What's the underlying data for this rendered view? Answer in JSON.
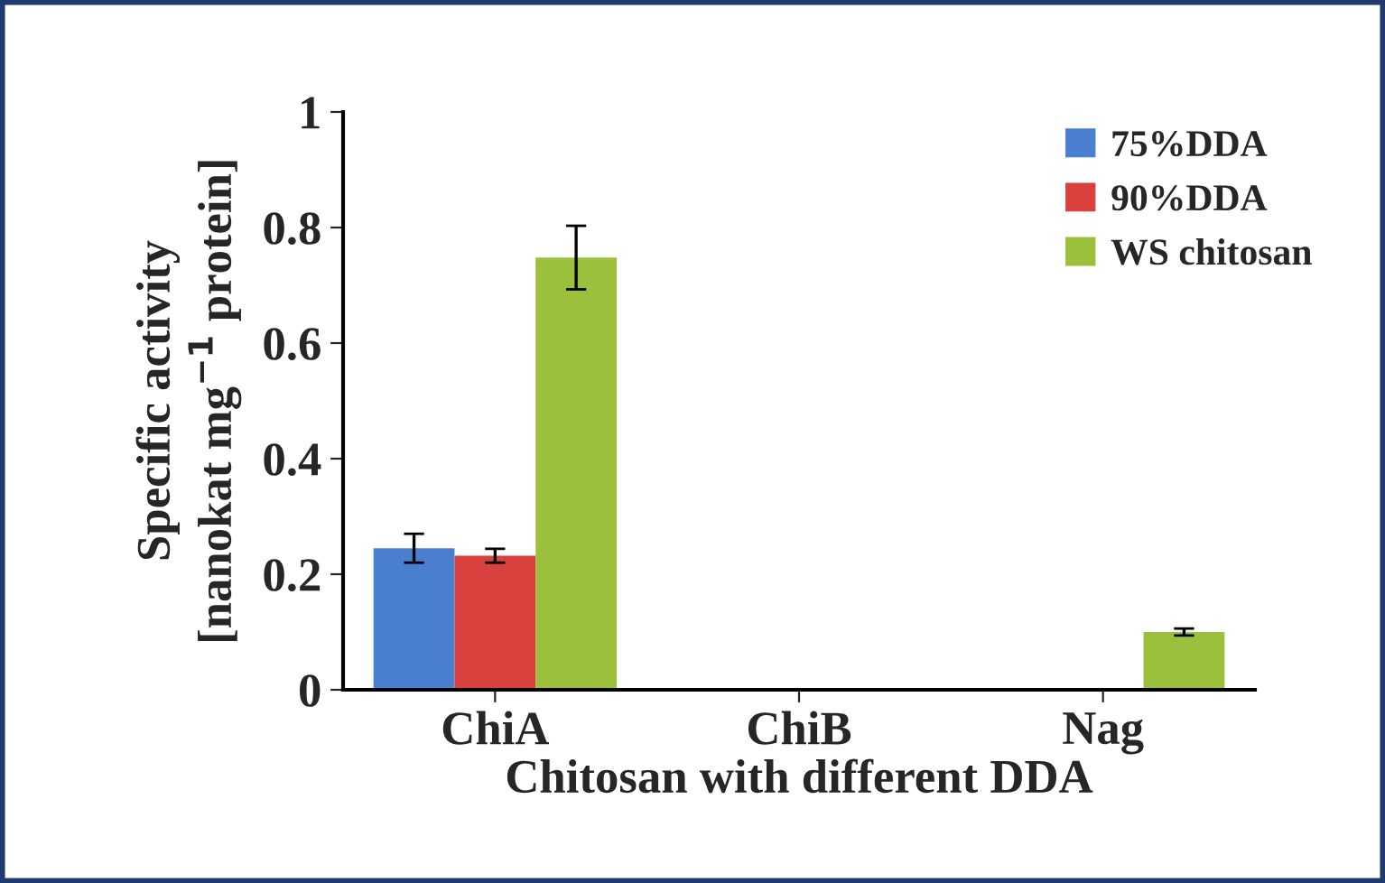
{
  "chart_data": {
    "type": "bar",
    "xlabel": "Chitosan with different DDA",
    "ylabel": "Specific activity\n[nanokat mg$^{−1}$ protein]",
    "categories": [
      "ChiA",
      "ChiB",
      "Nag"
    ],
    "series": [
      {
        "name": "75%DDA",
        "color": "#4a7fd0",
        "values": [
          0.245,
          0,
          0
        ],
        "errors": [
          0.025,
          null,
          null
        ]
      },
      {
        "name": "90%DDA",
        "color": "#d9413f",
        "values": [
          0.232,
          0,
          0
        ],
        "errors": [
          0.012,
          null,
          null
        ]
      },
      {
        "name": "WS chitosan",
        "color": "#9bc13c",
        "values": [
          0.748,
          0,
          0.1
        ],
        "errors": [
          0.055,
          null,
          0.006
        ]
      }
    ],
    "ylim": [
      0,
      1
    ],
    "yticks": [
      0,
      0.2,
      0.4,
      0.6,
      0.8,
      1
    ],
    "grid": false,
    "legend": "top right"
  }
}
